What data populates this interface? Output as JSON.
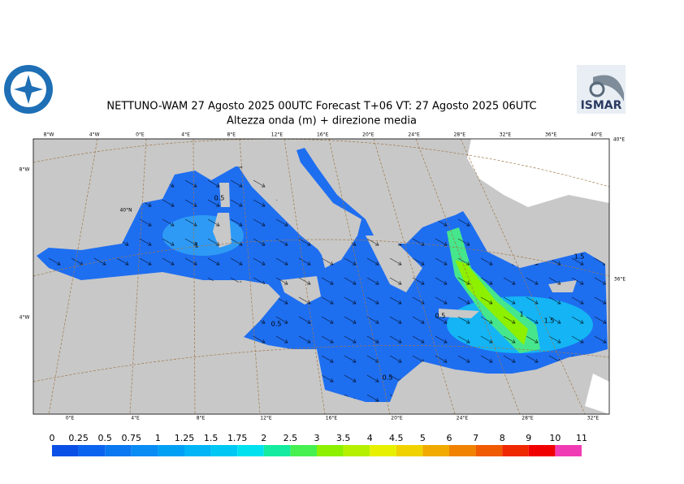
{
  "header": {
    "title": "NETTUNO-WAM  27   Agosto  2025 00UTC Forecast T+06 VT: 27   Agosto  2025 06UTC",
    "subtitle": "Altezza onda (m) + direzione media",
    "logo": "ISMAR"
  },
  "map": {
    "top_labels": [
      "8°W",
      "4°W",
      "0°E",
      "4°E",
      "8°E",
      "12°E",
      "16°E",
      "20°E",
      "24°E",
      "28°E",
      "32°E",
      "36°E",
      "40°E"
    ],
    "bottom_labels": [
      "0°E",
      "4°E",
      "8°E",
      "12°E",
      "16°E",
      "20°E",
      "24°E",
      "28°E",
      "32°E"
    ],
    "left_labels": [
      "8°W",
      "40°N",
      "4°W"
    ],
    "right_labels": [
      "40°E",
      "36°E"
    ],
    "contour_labels": [
      "0.5",
      "1",
      "0.5",
      "0.5",
      "0.5",
      "1",
      "1.5",
      "1.5"
    ]
  },
  "colorbar": {
    "levels": [
      0,
      0.25,
      0.5,
      0.75,
      1,
      1.25,
      1.5,
      1.75,
      2,
      2.5,
      3,
      3.5,
      4,
      4.5,
      5,
      6,
      7,
      8,
      9,
      10,
      11
    ],
    "colors": [
      "#0a50e6",
      "#0a64f0",
      "#0a78f0",
      "#0a8cf5",
      "#00a0f5",
      "#00b4f5",
      "#00c8f5",
      "#00e1f0",
      "#14eba0",
      "#46f050",
      "#8cf000",
      "#b4f000",
      "#e6f000",
      "#f0d200",
      "#f0aa00",
      "#f08200",
      "#f05a00",
      "#f02800",
      "#f00000",
      "#f03cb4"
    ]
  }
}
